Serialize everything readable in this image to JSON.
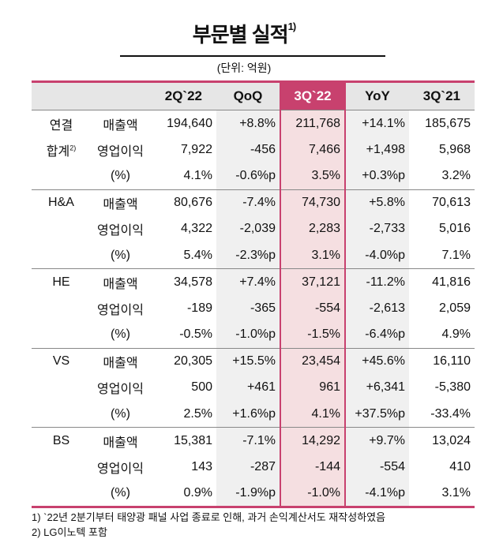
{
  "title": "부문별 실적",
  "title_note": "1)",
  "unit": "(단위: 억원)",
  "columns": [
    "",
    "",
    "2Q`22",
    "QoQ",
    "3Q`22",
    "YoY",
    "3Q`21"
  ],
  "accent_color": "#c8416e",
  "groups": [
    {
      "name": "연결",
      "name2": "합계",
      "name2_note": "2)",
      "rows": [
        {
          "metric": "매출액",
          "values": [
            "194,640",
            "+8.8%",
            "211,768",
            "+14.1%",
            "185,675"
          ]
        },
        {
          "metric": "영업이익",
          "values": [
            "7,922",
            "-456",
            "7,466",
            "+1,498",
            "5,968"
          ]
        },
        {
          "metric": "(%)",
          "values": [
            "4.1%",
            "-0.6%p",
            "3.5%",
            "+0.3%p",
            "3.2%"
          ]
        }
      ]
    },
    {
      "name": "H&A",
      "rows": [
        {
          "metric": "매출액",
          "values": [
            "80,676",
            "-7.4%",
            "74,730",
            "+5.8%",
            "70,613"
          ]
        },
        {
          "metric": "영업이익",
          "values": [
            "4,322",
            "-2,039",
            "2,283",
            "-2,733",
            "5,016"
          ]
        },
        {
          "metric": "(%)",
          "values": [
            "5.4%",
            "-2.3%p",
            "3.1%",
            "-4.0%p",
            "7.1%"
          ]
        }
      ]
    },
    {
      "name": "HE",
      "rows": [
        {
          "metric": "매출액",
          "values": [
            "34,578",
            "+7.4%",
            "37,121",
            "-11.2%",
            "41,816"
          ]
        },
        {
          "metric": "영업이익",
          "values": [
            "-189",
            "-365",
            "-554",
            "-2,613",
            "2,059"
          ]
        },
        {
          "metric": "(%)",
          "values": [
            "-0.5%",
            "-1.0%p",
            "-1.5%",
            "-6.4%p",
            "4.9%"
          ]
        }
      ]
    },
    {
      "name": "VS",
      "rows": [
        {
          "metric": "매출액",
          "values": [
            "20,305",
            "+15.5%",
            "23,454",
            "+45.6%",
            "16,110"
          ]
        },
        {
          "metric": "영업이익",
          "values": [
            "500",
            "+461",
            "961",
            "+6,341",
            "-5,380"
          ]
        },
        {
          "metric": "(%)",
          "values": [
            "2.5%",
            "+1.6%p",
            "4.1%",
            "+37.5%p",
            "-33.4%"
          ]
        }
      ]
    },
    {
      "name": "BS",
      "rows": [
        {
          "metric": "매출액",
          "values": [
            "15,381",
            "-7.1%",
            "14,292",
            "+9.7%",
            "13,024"
          ]
        },
        {
          "metric": "영업이익",
          "values": [
            "143",
            "-287",
            "-144",
            "-554",
            "410"
          ]
        },
        {
          "metric": "(%)",
          "values": [
            "0.9%",
            "-1.9%p",
            "-1.0%",
            "-4.1%p",
            "3.1%"
          ]
        }
      ]
    }
  ],
  "footnotes": [
    "1) `22년 2분기부터 태양광 패널 사업 종료로 인해, 과거 손익계산서도 재작성하였음",
    "2) LG이노텍 포함"
  ]
}
